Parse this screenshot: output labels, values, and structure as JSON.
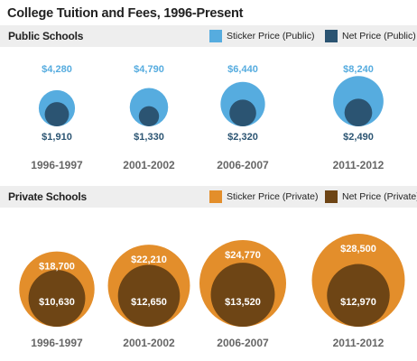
{
  "title": "College Tuition and Fees, 1996-Present",
  "colors": {
    "public_sticker": "#56acdf",
    "public_net": "#2b5472",
    "private_sticker": "#e38e2b",
    "private_net": "#6e4515"
  },
  "chart_data": [
    {
      "type": "bubble",
      "title": "Public Schools",
      "categories": [
        "1996-1997",
        "2001-2002",
        "2006-2007",
        "2011-2012"
      ],
      "series": [
        {
          "name": "Sticker Price (Public)",
          "values": [
            4280,
            4790,
            6440,
            8240
          ],
          "labels": [
            "$4,280",
            "$4,790",
            "$6,440",
            "$8,240"
          ]
        },
        {
          "name": "Net Price (Public)",
          "values": [
            1910,
            1330,
            2320,
            2490
          ],
          "labels": [
            "$1,910",
            "$1,330",
            "$2,320",
            "$2,490"
          ]
        }
      ]
    },
    {
      "type": "bubble",
      "title": "Private Schools",
      "categories": [
        "1996-1997",
        "2001-2002",
        "2006-2007",
        "2011-2012"
      ],
      "series": [
        {
          "name": "Sticker Price (Private)",
          "values": [
            18700,
            22210,
            24770,
            28500
          ],
          "labels": [
            "$18,700",
            "$22,210",
            "$24,770",
            "$28,500"
          ]
        },
        {
          "name": "Net Price (Private)",
          "values": [
            10630,
            12650,
            13520,
            12970
          ],
          "labels": [
            "$10,630",
            "$12,650",
            "$13,520",
            "$12,970"
          ]
        }
      ]
    }
  ]
}
